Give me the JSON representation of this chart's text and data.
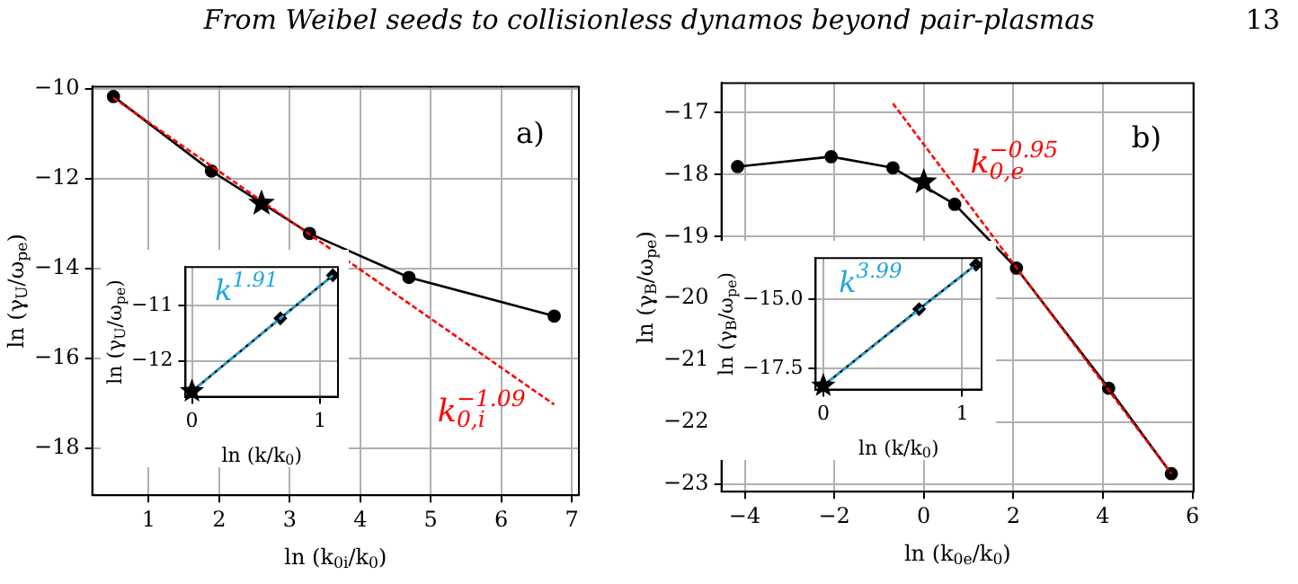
{
  "chart_data": [
    {
      "type": "other",
      "title": "From Weibel seeds to collisionless dynamos beyond pair-plasmas",
      "annotations": [
        "13"
      ]
    },
    {
      "type": "line",
      "xlabel": "ln (k$_{0i}$/k$_{0}$)",
      "ylabel": "ln (γ$_{U}$/ω$_{pe}$)",
      "xlim": [
        0.2,
        7.1
      ],
      "ylim": [
        -19.05,
        -9.95
      ],
      "xticks": [
        1,
        2,
        3,
        4,
        5,
        6,
        7
      ],
      "yticks": [
        -18,
        -16,
        -14,
        -12,
        -10
      ],
      "grid": true,
      "annotations": [
        "a)",
        "k$_{0,i}$$^{−1.09}$"
      ],
      "series": [
        {
          "type": "line",
          "color": "#000000",
          "marker": "circle",
          "x": [
            0.5,
            1.89,
            3.28,
            4.69,
            6.75
          ],
          "values": [
            -10.17,
            -11.83,
            -13.22,
            -14.2,
            -15.06
          ]
        },
        {
          "type": "scatter",
          "color": "#000000",
          "marker": "star",
          "x": [
            2.6
          ],
          "values": [
            -12.55
          ]
        },
        {
          "type": "line",
          "color": "#ff0000",
          "line_style": "dashed",
          "marker": "none",
          "x": [
            0.5,
            6.75
          ],
          "values": [
            -10.2,
            -17.03
          ]
        }
      ]
    },
    {
      "type": "line",
      "xlabel": "ln (k/k$_{0}$)",
      "ylabel": "ln (γ$_{U}$/ω$_{pe}$)",
      "xlim": [
        -0.05,
        1.14
      ],
      "ylim": [
        -12.65,
        -10.3
      ],
      "xticks": [
        0,
        1
      ],
      "yticks": [
        -12,
        -11
      ],
      "grid": true,
      "annotations": [
        "k$^{1.91}$"
      ],
      "series": [
        {
          "type": "line",
          "color": "#000000",
          "marker": "diamond",
          "x": [
            0,
            0.69,
            1.1
          ],
          "values": [
            -12.55,
            -11.23,
            -10.45
          ]
        },
        {
          "type": "scatter",
          "color": "#000000",
          "marker": "star",
          "x": [
            0
          ],
          "values": [
            -12.55
          ]
        },
        {
          "type": "line",
          "color": "#1ea7e1",
          "line_style": "dashed",
          "marker": "none",
          "x": [
            0,
            1.1
          ],
          "values": [
            -12.55,
            -10.45
          ]
        }
      ]
    },
    {
      "type": "line",
      "xlabel": "ln (k$_{0e}$/k$_{0}$)",
      "ylabel": "ln (γ$_{B}$/ω$_{pe}$)",
      "xlim": [
        -4.52,
        6.03
      ],
      "ylim": [
        -23.12,
        -16.52
      ],
      "xticks": [
        -4,
        -2,
        0,
        2,
        4,
        6
      ],
      "yticks": [
        -23,
        -22,
        -21,
        -20,
        -19,
        -18,
        -17
      ],
      "grid": true,
      "annotations": [
        "b)",
        "k$_{0,e}$$^{−0.95}$"
      ],
      "series": [
        {
          "type": "line",
          "color": "#000000",
          "marker": "circle",
          "x": [
            -4.16,
            -2.07,
            -0.69,
            0.69,
            2.07,
            4.13,
            5.53
          ],
          "values": [
            -17.87,
            -17.71,
            -17.89,
            -18.48,
            -19.51,
            -21.45,
            -22.83
          ]
        },
        {
          "type": "scatter",
          "color": "#000000",
          "marker": "star",
          "x": [
            0
          ],
          "values": [
            -18.12
          ]
        },
        {
          "type": "line",
          "color": "#ff0000",
          "line_style": "dashed",
          "marker": "none",
          "x": [
            -0.69,
            5.53
          ],
          "values": [
            -16.85,
            -22.83
          ]
        }
      ]
    },
    {
      "type": "line",
      "xlabel": "ln (k/k$_{0}$)",
      "ylabel": "ln (γ$_{B}$/ω$_{pe}$)",
      "xlim": [
        -0.055,
        1.14
      ],
      "ylim": [
        -18.26,
        -13.5
      ],
      "xticks": [
        0,
        1
      ],
      "yticks": [
        {
          "value": -17.5,
          "label": "−17.5"
        },
        {
          "value": -15,
          "label": "−15.0"
        }
      ],
      "grid": true,
      "annotations": [
        "k$^{3.99}$"
      ],
      "series": [
        {
          "type": "line",
          "color": "#000000",
          "marker": "diamond",
          "x": [
            0,
            0.69,
            1.1
          ],
          "values": [
            -18.12,
            -15.35,
            -13.74
          ]
        },
        {
          "type": "scatter",
          "color": "#000000",
          "marker": "star",
          "x": [
            0
          ],
          "values": [
            -18.12
          ]
        },
        {
          "type": "line",
          "color": "#1ea7e1",
          "line_style": "dashed",
          "marker": "none",
          "x": [
            0,
            1.1
          ],
          "values": [
            -18.12,
            -13.74
          ]
        }
      ]
    }
  ]
}
